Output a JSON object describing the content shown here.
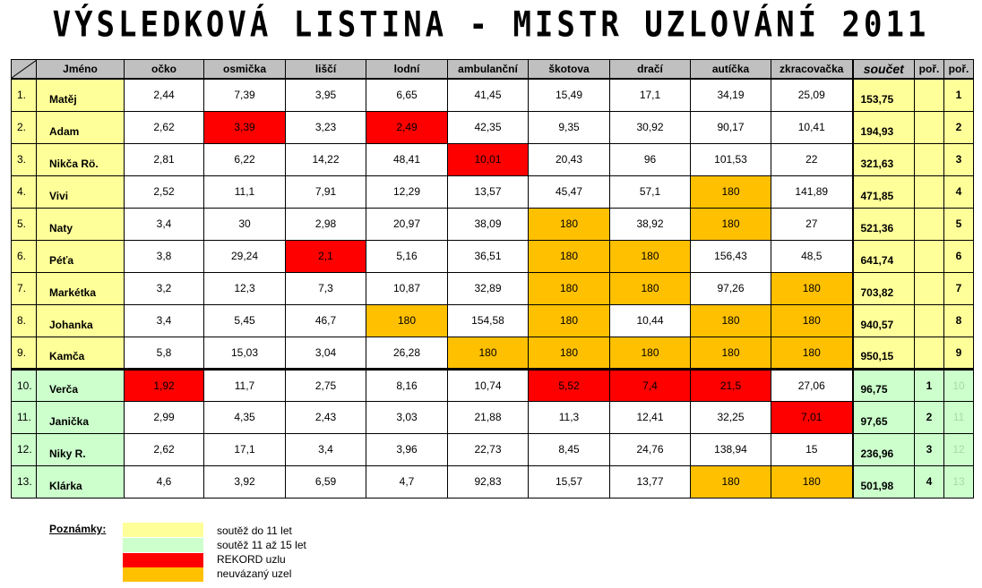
{
  "title": "VÝSLEDKOVÁ LISTINA - MISTR UZLOVÁNÍ 2011",
  "colors": {
    "yellow": "#ffff99",
    "green": "#ccffcc",
    "record_red": "#ff0000",
    "untied_orange": "#ffc000"
  },
  "headers": [
    "Jméno",
    "očko",
    "osmička",
    "liščí",
    "lodní",
    "ambulanční",
    "škotova",
    "dračí",
    "autíčka",
    "zkracovačka",
    "součet",
    "poř.",
    "poř."
  ],
  "rows": [
    {
      "n": "1.",
      "name": "Matěj",
      "v": [
        "2,44",
        "7,39",
        "3,95",
        "6,65",
        "41,45",
        "15,49",
        "17,1",
        "34,19",
        "25,09"
      ],
      "c": [
        "",
        "",
        "",
        "",
        "",
        "",
        "",
        "",
        ""
      ],
      "sum": "153,75",
      "r1": "",
      "r2": "1",
      "g": "y"
    },
    {
      "n": "2.",
      "name": "Adam",
      "v": [
        "2,62",
        "3,39",
        "3,23",
        "2,49",
        "42,35",
        "9,35",
        "30,92",
        "90,17",
        "10,41"
      ],
      "c": [
        "",
        "red",
        "",
        "red",
        "",
        "",
        "",
        "",
        ""
      ],
      "sum": "194,93",
      "r1": "",
      "r2": "2",
      "g": "y"
    },
    {
      "n": "3.",
      "name": "Nikča Rö.",
      "v": [
        "2,81",
        "6,22",
        "14,22",
        "48,41",
        "10,01",
        "20,43",
        "96",
        "101,53",
        "22"
      ],
      "c": [
        "",
        "",
        "",
        "",
        "red",
        "",
        "",
        "",
        ""
      ],
      "sum": "321,63",
      "r1": "",
      "r2": "3",
      "g": "y"
    },
    {
      "n": "4.",
      "name": "Vivi",
      "v": [
        "2,52",
        "11,1",
        "7,91",
        "12,29",
        "13,57",
        "45,47",
        "57,1",
        "180",
        "141,89"
      ],
      "c": [
        "",
        "",
        "",
        "",
        "",
        "",
        "",
        "orange",
        ""
      ],
      "sum": "471,85",
      "r1": "",
      "r2": "4",
      "g": "y"
    },
    {
      "n": "5.",
      "name": "Naty",
      "v": [
        "3,4",
        "30",
        "2,98",
        "20,97",
        "38,09",
        "180",
        "38,92",
        "180",
        "27"
      ],
      "c": [
        "",
        "",
        "",
        "",
        "",
        "orange",
        "",
        "orange",
        ""
      ],
      "sum": "521,36",
      "r1": "",
      "r2": "5",
      "g": "y"
    },
    {
      "n": "6.",
      "name": "Péťa",
      "v": [
        "3,8",
        "29,24",
        "2,1",
        "5,16",
        "36,51",
        "180",
        "180",
        "156,43",
        "48,5"
      ],
      "c": [
        "",
        "",
        "red",
        "",
        "",
        "orange",
        "orange",
        "",
        ""
      ],
      "sum": "641,74",
      "r1": "",
      "r2": "6",
      "g": "y"
    },
    {
      "n": "7.",
      "name": "Markétka",
      "v": [
        "3,2",
        "12,3",
        "7,3",
        "10,87",
        "32,89",
        "180",
        "180",
        "97,26",
        "180"
      ],
      "c": [
        "",
        "",
        "",
        "",
        "",
        "orange",
        "orange",
        "",
        "orange"
      ],
      "sum": "703,82",
      "r1": "",
      "r2": "7",
      "g": "y"
    },
    {
      "n": "8.",
      "name": "Johanka",
      "v": [
        "3,4",
        "5,45",
        "46,7",
        "180",
        "154,58",
        "180",
        "10,44",
        "180",
        "180"
      ],
      "c": [
        "",
        "",
        "",
        "orange",
        "",
        "orange",
        "",
        "orange",
        "orange"
      ],
      "sum": "940,57",
      "r1": "",
      "r2": "8",
      "g": "y"
    },
    {
      "n": "9.",
      "name": "Kamča",
      "v": [
        "5,8",
        "15,03",
        "3,04",
        "26,28",
        "180",
        "180",
        "180",
        "180",
        "180"
      ],
      "c": [
        "",
        "",
        "",
        "",
        "orange",
        "orange",
        "orange",
        "orange",
        "orange"
      ],
      "sum": "950,15",
      "r1": "",
      "r2": "9",
      "g": "y"
    },
    {
      "n": "10.",
      "name": "Verča",
      "v": [
        "1,92",
        "11,7",
        "2,75",
        "8,16",
        "10,74",
        "5,52",
        "7,4",
        "21,5",
        "27,06"
      ],
      "c": [
        "red",
        "",
        "",
        "",
        "",
        "red",
        "red",
        "red",
        ""
      ],
      "sum": "96,75",
      "r1": "1",
      "r2": "10",
      "g": "g"
    },
    {
      "n": "11.",
      "name": "Janička",
      "v": [
        "2,99",
        "4,35",
        "2,43",
        "3,03",
        "21,88",
        "11,3",
        "12,41",
        "32,25",
        "7,01"
      ],
      "c": [
        "",
        "",
        "",
        "",
        "",
        "",
        "",
        "",
        "red"
      ],
      "sum": "97,65",
      "r1": "2",
      "r2": "11",
      "g": "g"
    },
    {
      "n": "12.",
      "name": "Niky R.",
      "v": [
        "2,62",
        "17,1",
        "3,4",
        "3,96",
        "22,73",
        "8,45",
        "24,76",
        "138,94",
        "15"
      ],
      "c": [
        "",
        "",
        "",
        "",
        "",
        "",
        "",
        "",
        ""
      ],
      "sum": "236,96",
      "r1": "3",
      "r2": "12",
      "g": "g"
    },
    {
      "n": "13.",
      "name": "Klárka",
      "v": [
        "4,6",
        "3,92",
        "6,59",
        "4,7",
        "92,83",
        "15,57",
        "13,77",
        "180",
        "180"
      ],
      "c": [
        "",
        "",
        "",
        "",
        "",
        "",
        "",
        "orange",
        "orange"
      ],
      "sum": "501,98",
      "r1": "4",
      "r2": "13",
      "g": "g"
    }
  ],
  "legend": {
    "label": "Poznámky:",
    "items": [
      {
        "color": "#ffff99",
        "text": "soutěž do 11 let"
      },
      {
        "color": "#ccffcc",
        "text": "soutěž 11 až 15 let"
      },
      {
        "color": "#ff0000",
        "text": "REKORD uzlu"
      },
      {
        "color": "#ffc000",
        "text": "neuvázaný uzel"
      }
    ]
  }
}
